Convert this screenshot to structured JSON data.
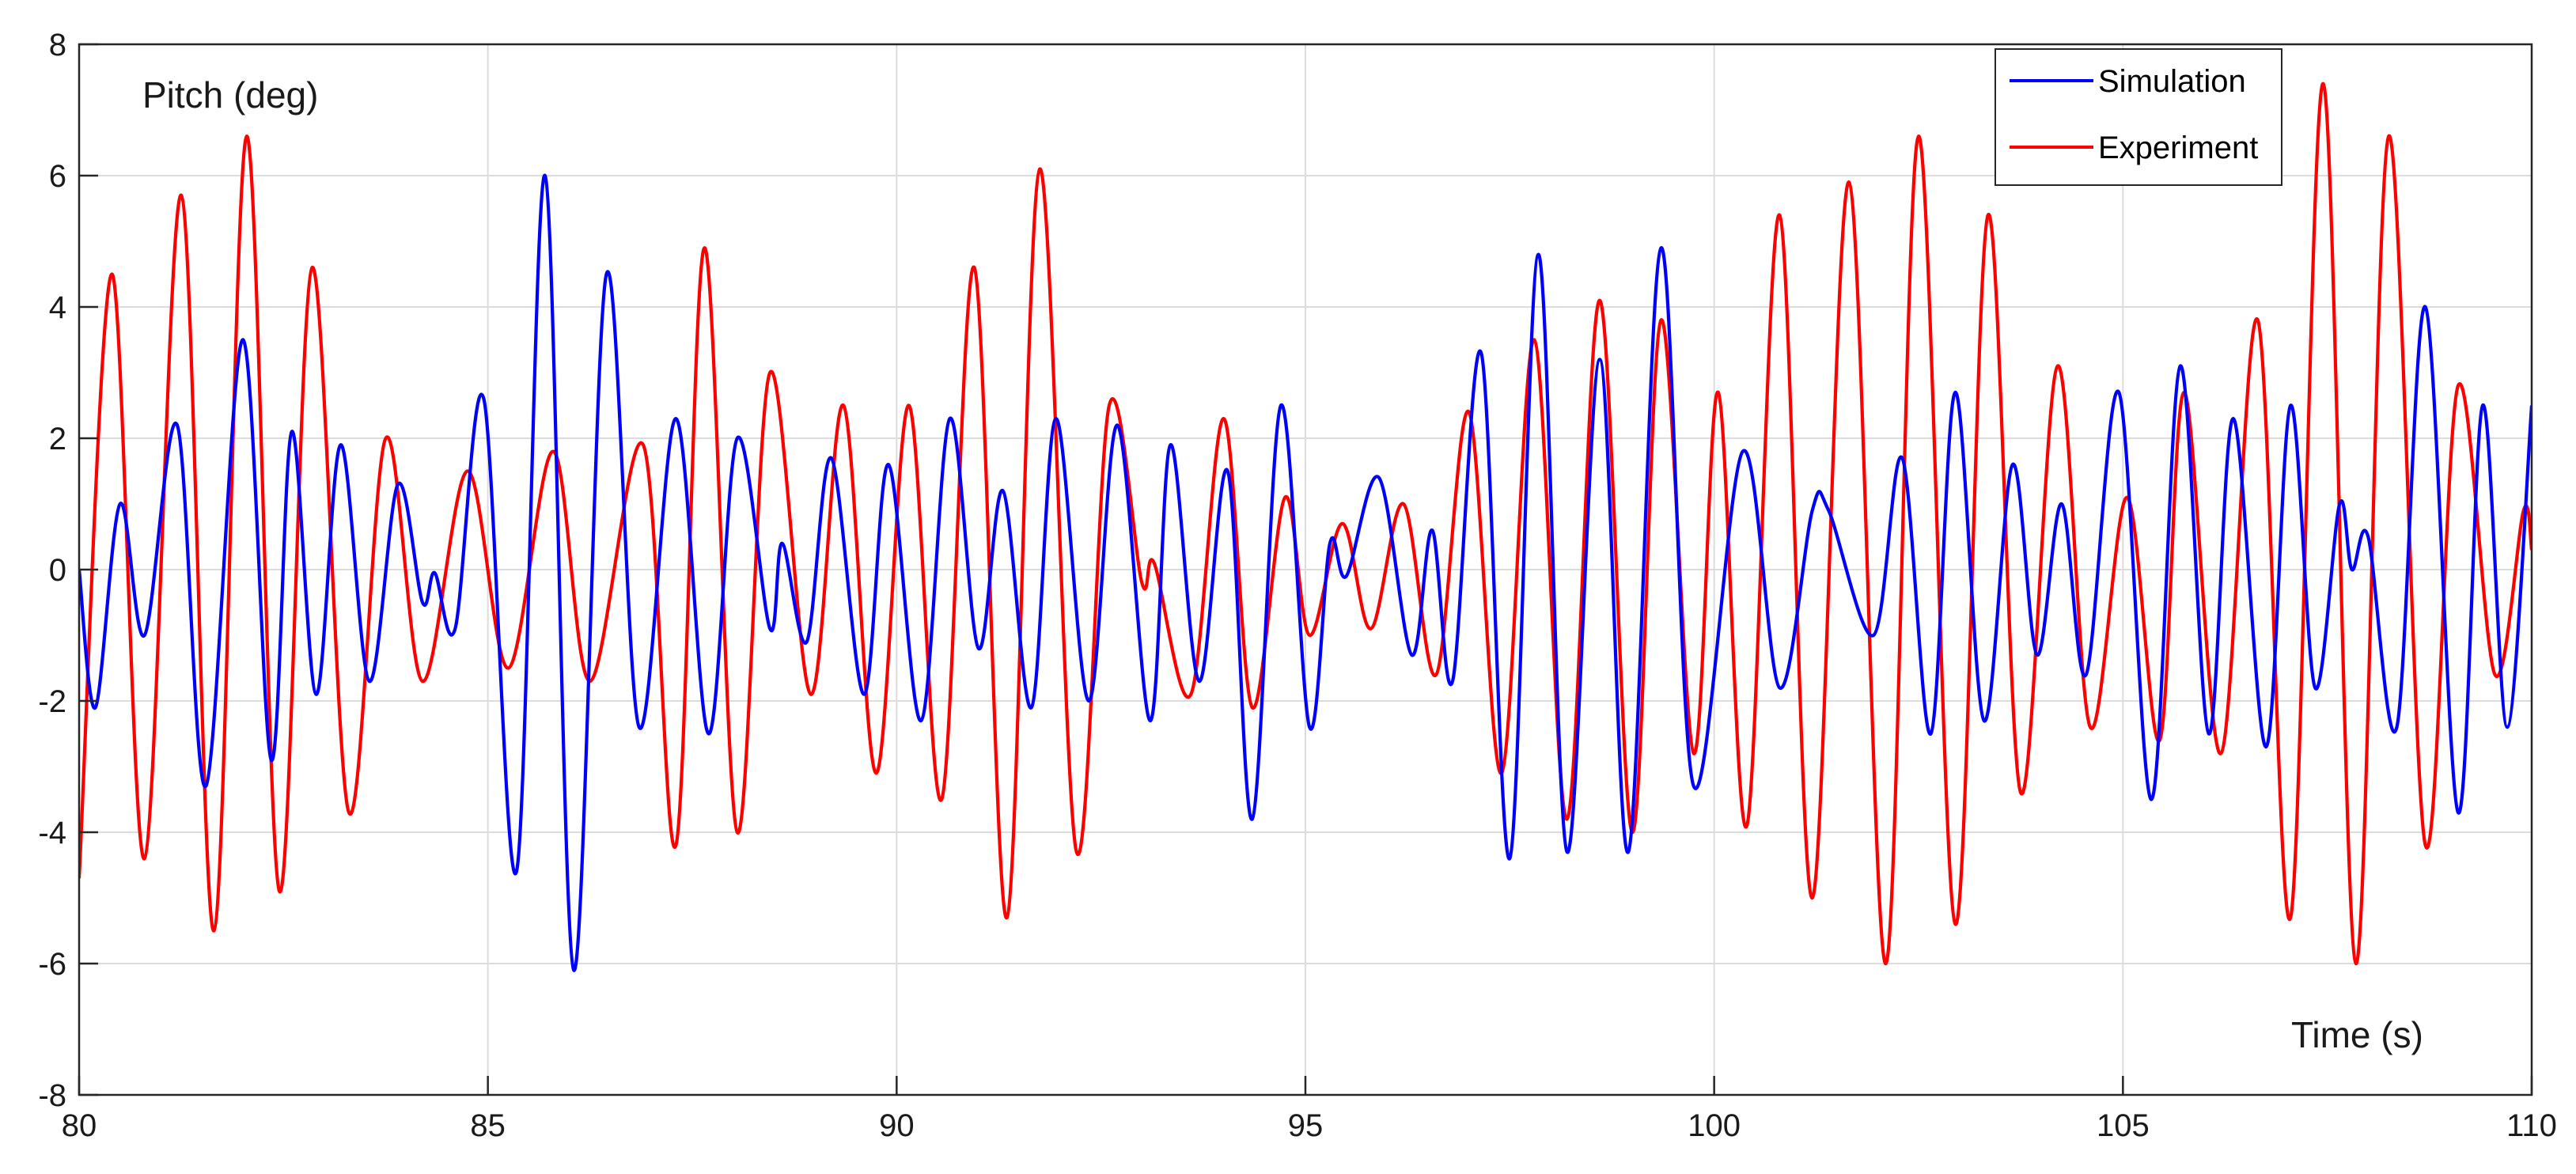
{
  "chart_data": {
    "type": "line",
    "title": "",
    "ylabel": "Pitch (deg)",
    "xlabel": "Time (s)",
    "xlim": [
      80,
      110
    ],
    "ylim": [
      -8,
      8
    ],
    "x_ticks": [
      80,
      85,
      90,
      95,
      100,
      105,
      110
    ],
    "x_tick_labels": [
      "80",
      "85",
      "90",
      "95",
      "100",
      "105",
      "110"
    ],
    "y_ticks": [
      -8,
      -6,
      -4,
      -2,
      0,
      2,
      4,
      6,
      8
    ],
    "y_tick_labels": [
      "-8",
      "-6",
      "-4",
      "-2",
      "0",
      "2",
      "4",
      "6",
      "8"
    ],
    "grid": true,
    "legend": {
      "position": "top-right",
      "entries": [
        "Simulation",
        "Experiment"
      ]
    },
    "series": [
      {
        "name": "Simulation",
        "color": "#0000ff",
        "points": [
          [
            80.0,
            0.0
          ],
          [
            80.2,
            -2.1
          ],
          [
            80.5,
            1.0
          ],
          [
            80.8,
            -1.0
          ],
          [
            81.2,
            2.2
          ],
          [
            81.55,
            -3.3
          ],
          [
            82.0,
            3.5
          ],
          [
            82.35,
            -2.9
          ],
          [
            82.6,
            2.1
          ],
          [
            82.9,
            -1.9
          ],
          [
            83.2,
            1.9
          ],
          [
            83.55,
            -1.7
          ],
          [
            83.9,
            1.3
          ],
          [
            84.2,
            -0.5
          ],
          [
            84.35,
            -0.05
          ],
          [
            84.6,
            -0.9
          ],
          [
            84.95,
            2.6
          ],
          [
            85.35,
            -4.6
          ],
          [
            85.7,
            6.0
          ],
          [
            86.05,
            -6.1
          ],
          [
            86.45,
            4.5
          ],
          [
            86.85,
            -2.4
          ],
          [
            87.3,
            2.3
          ],
          [
            87.7,
            -2.5
          ],
          [
            88.05,
            2.0
          ],
          [
            88.45,
            -0.9
          ],
          [
            88.6,
            0.4
          ],
          [
            88.9,
            -1.1
          ],
          [
            89.2,
            1.7
          ],
          [
            89.6,
            -1.9
          ],
          [
            89.9,
            1.6
          ],
          [
            90.3,
            -2.3
          ],
          [
            90.65,
            2.3
          ],
          [
            91.0,
            -1.2
          ],
          [
            91.3,
            1.2
          ],
          [
            91.65,
            -2.1
          ],
          [
            91.95,
            2.3
          ],
          [
            92.35,
            -2.0
          ],
          [
            92.7,
            2.2
          ],
          [
            93.1,
            -2.3
          ],
          [
            93.35,
            1.9
          ],
          [
            93.7,
            -1.7
          ],
          [
            94.05,
            1.5
          ],
          [
            94.35,
            -3.8
          ],
          [
            94.7,
            2.5
          ],
          [
            95.05,
            -2.4
          ],
          [
            95.3,
            0.4
          ],
          [
            95.5,
            -0.1
          ],
          [
            95.9,
            1.4
          ],
          [
            96.3,
            -1.3
          ],
          [
            96.55,
            0.6
          ],
          [
            96.8,
            -1.7
          ],
          [
            97.15,
            3.3
          ],
          [
            97.5,
            -4.4
          ],
          [
            97.85,
            4.8
          ],
          [
            98.2,
            -4.3
          ],
          [
            98.6,
            3.2
          ],
          [
            98.95,
            -4.3
          ],
          [
            99.35,
            4.9
          ],
          [
            99.75,
            -3.3
          ],
          [
            100.35,
            1.8
          ],
          [
            100.8,
            -1.8
          ],
          [
            101.2,
            0.9
          ],
          [
            101.4,
            0.9
          ],
          [
            101.95,
            -1.0
          ],
          [
            102.3,
            1.7
          ],
          [
            102.65,
            -2.5
          ],
          [
            102.95,
            2.7
          ],
          [
            103.3,
            -2.3
          ],
          [
            103.65,
            1.6
          ],
          [
            103.95,
            -1.3
          ],
          [
            104.25,
            1.0
          ],
          [
            104.55,
            -1.6
          ],
          [
            104.95,
            2.7
          ],
          [
            105.35,
            -3.5
          ],
          [
            105.7,
            3.1
          ],
          [
            106.05,
            -2.5
          ],
          [
            106.35,
            2.3
          ],
          [
            106.75,
            -2.7
          ],
          [
            107.05,
            2.5
          ],
          [
            107.35,
            -1.8
          ],
          [
            107.65,
            1.0
          ],
          [
            107.8,
            0.0
          ],
          [
            108.0,
            0.5
          ],
          [
            108.35,
            -2.4
          ],
          [
            108.7,
            4.0
          ],
          [
            109.1,
            -3.7
          ],
          [
            109.4,
            2.5
          ],
          [
            109.7,
            -2.4
          ],
          [
            110.0,
            2.5
          ]
        ]
      },
      {
        "name": "Experiment",
        "color": "#ff0000",
        "points": [
          [
            80.0,
            -4.7
          ],
          [
            80.4,
            4.5
          ],
          [
            80.8,
            -4.4
          ],
          [
            81.25,
            5.7
          ],
          [
            81.65,
            -5.5
          ],
          [
            82.05,
            6.6
          ],
          [
            82.45,
            -4.9
          ],
          [
            82.85,
            4.6
          ],
          [
            83.3,
            -3.7
          ],
          [
            83.75,
            2.0
          ],
          [
            84.2,
            -1.7
          ],
          [
            84.75,
            1.5
          ],
          [
            85.25,
            -1.5
          ],
          [
            85.8,
            1.8
          ],
          [
            86.25,
            -1.7
          ],
          [
            86.9,
            1.9
          ],
          [
            87.3,
            -4.2
          ],
          [
            87.65,
            4.9
          ],
          [
            88.05,
            -4.0
          ],
          [
            88.45,
            3.0
          ],
          [
            88.95,
            -1.9
          ],
          [
            89.35,
            2.5
          ],
          [
            89.75,
            -3.1
          ],
          [
            90.15,
            2.5
          ],
          [
            90.55,
            -3.5
          ],
          [
            90.95,
            4.6
          ],
          [
            91.35,
            -5.3
          ],
          [
            91.75,
            6.1
          ],
          [
            92.2,
            -4.3
          ],
          [
            92.6,
            2.5
          ],
          [
            93.0,
            -0.2
          ],
          [
            93.15,
            0.1
          ],
          [
            93.6,
            -1.9
          ],
          [
            94.0,
            2.3
          ],
          [
            94.35,
            -2.1
          ],
          [
            94.75,
            1.1
          ],
          [
            95.05,
            -1.0
          ],
          [
            95.45,
            0.7
          ],
          [
            95.8,
            -0.9
          ],
          [
            96.2,
            1.0
          ],
          [
            96.6,
            -1.6
          ],
          [
            97.0,
            2.4
          ],
          [
            97.4,
            -3.1
          ],
          [
            97.8,
            3.5
          ],
          [
            98.2,
            -3.8
          ],
          [
            98.6,
            4.1
          ],
          [
            99.0,
            -4.0
          ],
          [
            99.35,
            3.8
          ],
          [
            99.75,
            -2.8
          ],
          [
            100.05,
            2.7
          ],
          [
            100.4,
            -3.9
          ],
          [
            100.8,
            5.4
          ],
          [
            101.2,
            -5.0
          ],
          [
            101.65,
            5.9
          ],
          [
            102.1,
            -6.0
          ],
          [
            102.5,
            6.6
          ],
          [
            102.95,
            -5.4
          ],
          [
            103.35,
            5.4
          ],
          [
            103.75,
            -3.4
          ],
          [
            104.2,
            3.1
          ],
          [
            104.6,
            -2.4
          ],
          [
            105.05,
            1.1
          ],
          [
            105.45,
            -2.6
          ],
          [
            105.75,
            2.7
          ],
          [
            106.2,
            -2.8
          ],
          [
            106.65,
            3.8
          ],
          [
            107.05,
            -5.3
          ],
          [
            107.45,
            7.4
          ],
          [
            107.85,
            -6.0
          ],
          [
            108.25,
            6.6
          ],
          [
            108.7,
            -4.2
          ],
          [
            109.1,
            2.8
          ],
          [
            109.55,
            -1.6
          ],
          [
            109.9,
            0.9
          ],
          [
            110.0,
            0.3
          ]
        ]
      }
    ]
  },
  "colors": {
    "grid": "#dcdcdc",
    "axes": "#262626",
    "simulation": "#0000ff",
    "experiment": "#ff0000"
  }
}
